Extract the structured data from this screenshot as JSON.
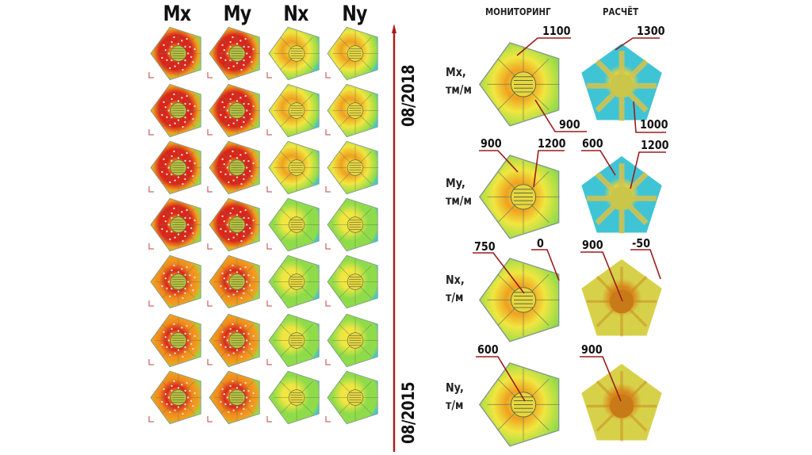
{
  "left_panel": {
    "columns": [
      {
        "label": "Mx",
        "palette": "hot"
      },
      {
        "label": "My",
        "palette": "hot"
      },
      {
        "label": "Nx",
        "palette": "mixed"
      },
      {
        "label": "Ny",
        "palette": "mixed"
      }
    ],
    "rows": 7,
    "timeline": {
      "start_label": "08/2015",
      "end_label": "08/2018",
      "arrow_color": "#b01818"
    }
  },
  "right_panel": {
    "headers": {
      "monitoring": "МОНИТОРИНГ",
      "calculation": "РАСЧЁТ"
    },
    "rows": [
      {
        "label_line1": "Mx,",
        "label_line2": "тм/м",
        "monitoring_callouts": [
          "1100",
          "900"
        ],
        "calculation_callouts": [
          "1300",
          "1000"
        ],
        "calc_style": "blue"
      },
      {
        "label_line1": "My,",
        "label_line2": "тм/м",
        "monitoring_callouts": [
          "900",
          "1200"
        ],
        "calculation_callouts": [
          "600",
          "1200"
        ],
        "calc_style": "blue"
      },
      {
        "label_line1": "Nx,",
        "label_line2": "т/м",
        "monitoring_callouts": [
          "750",
          "0"
        ],
        "calculation_callouts": [
          "900",
          "-50"
        ],
        "calc_style": "yellow"
      },
      {
        "label_line1": "Ny,",
        "label_line2": "т/м",
        "monitoring_callouts": [
          "600"
        ],
        "calculation_callouts": [
          "900"
        ],
        "calc_style": "yellow"
      }
    ],
    "leader_color": "#9b1b1b"
  },
  "colors": {
    "hot_outer": "#f3e23a",
    "hot_mid": "#f08a1a",
    "hot_inner": "#d9261a",
    "hot_core": "#9e0d0d",
    "green": "#8fdc4a",
    "cyan": "#45c8c8",
    "yellow": "#f1e640",
    "orange": "#f0a020",
    "calc_blue": "#3fc4d6",
    "calc_yellow": "#d7d14a",
    "calc_orange": "#d9861c"
  }
}
